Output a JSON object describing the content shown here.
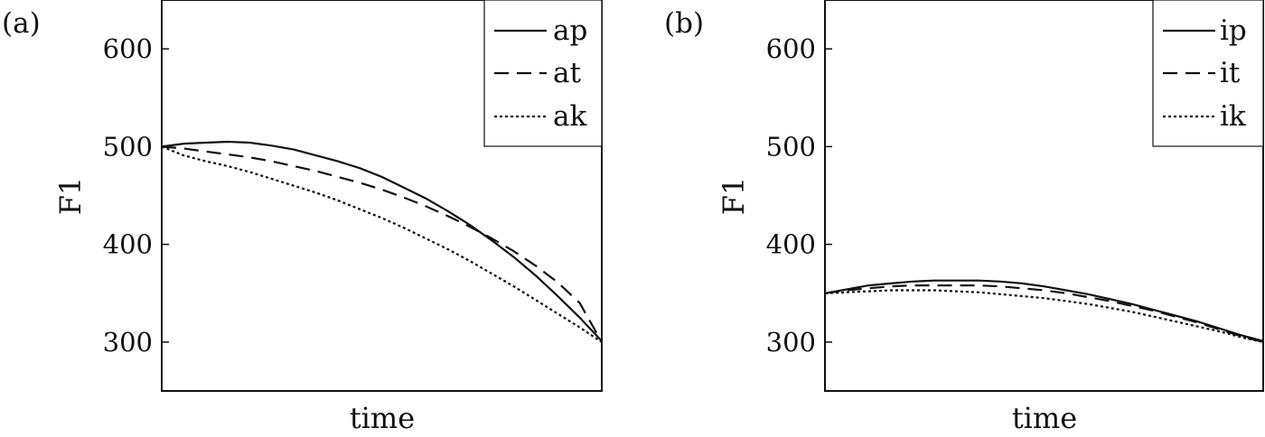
{
  "chart_data": [
    {
      "type": "line",
      "panel_label": "(a)",
      "xlabel": "time",
      "ylabel": "F1",
      "ylim": [
        250,
        650
      ],
      "yticks": [
        300,
        400,
        500,
        600
      ],
      "x": [
        0,
        0.05,
        0.1,
        0.15,
        0.2,
        0.25,
        0.3,
        0.35,
        0.4,
        0.45,
        0.5,
        0.55,
        0.6,
        0.65,
        0.7,
        0.75,
        0.8,
        0.85,
        0.9,
        0.95,
        1.0
      ],
      "legend": "top-right",
      "series": [
        {
          "name": "ap",
          "style": "solid",
          "values": [
            500,
            503,
            504,
            505,
            504,
            501,
            497,
            491,
            485,
            478,
            469,
            458,
            447,
            434,
            420,
            404,
            387,
            368,
            347,
            325,
            301
          ]
        },
        {
          "name": "at",
          "style": "dashed",
          "values": [
            500,
            498,
            495,
            492,
            489,
            485,
            480,
            475,
            469,
            463,
            456,
            448,
            439,
            429,
            418,
            406,
            393,
            378,
            361,
            340,
            300
          ]
        },
        {
          "name": "ak",
          "style": "dotted",
          "values": [
            500,
            491,
            485,
            480,
            474,
            467,
            460,
            453,
            445,
            436,
            427,
            417,
            406,
            395,
            383,
            370,
            357,
            343,
            329,
            315,
            300
          ]
        }
      ]
    },
    {
      "type": "line",
      "panel_label": "(b)",
      "xlabel": "time",
      "ylabel": "F1",
      "ylim": [
        250,
        650
      ],
      "yticks": [
        300,
        400,
        500,
        600
      ],
      "x": [
        0,
        0.05,
        0.1,
        0.15,
        0.2,
        0.25,
        0.3,
        0.35,
        0.4,
        0.45,
        0.5,
        0.55,
        0.6,
        0.65,
        0.7,
        0.75,
        0.8,
        0.85,
        0.9,
        0.95,
        1.0
      ],
      "legend": "top-right",
      "series": [
        {
          "name": "ip",
          "style": "solid",
          "values": [
            350,
            354,
            358,
            360,
            362,
            363,
            363,
            363,
            362,
            360,
            357,
            353,
            349,
            344,
            339,
            333,
            327,
            321,
            314,
            307,
            301
          ]
        },
        {
          "name": "it",
          "style": "dashed",
          "values": [
            350,
            353,
            355,
            357,
            358,
            358,
            358,
            358,
            357,
            355,
            353,
            350,
            346,
            342,
            337,
            332,
            326,
            320,
            313,
            306,
            300
          ]
        },
        {
          "name": "ik",
          "style": "dotted",
          "values": [
            350,
            351,
            352,
            353,
            353,
            353,
            352,
            351,
            349,
            347,
            345,
            342,
            339,
            335,
            331,
            326,
            321,
            316,
            311,
            305,
            300
          ]
        }
      ]
    }
  ]
}
